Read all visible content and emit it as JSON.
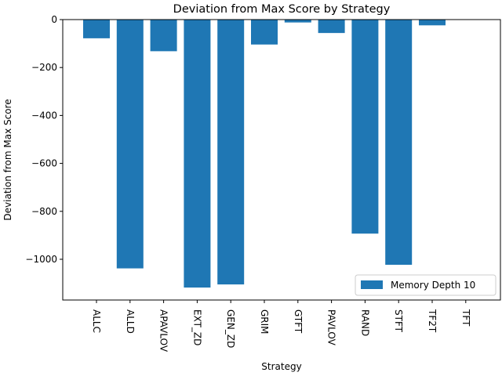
{
  "chart_data": {
    "type": "bar",
    "title": "Deviation from Max Score by Strategy",
    "xlabel": "Strategy",
    "ylabel": "Deviation from Max Score",
    "categories": [
      "ALLC",
      "ALLD",
      "APAVLOV",
      "EXT_ZD",
      "GEN_ZD",
      "GRIM",
      "GTFT",
      "PAVLOV",
      "RAND",
      "STFT",
      "TF2T",
      "TFT"
    ],
    "series": [
      {
        "name": "Memory Depth 10",
        "values": [
          -78,
          -1038,
          -132,
          -1118,
          -1105,
          -104,
          -12,
          -56,
          -893,
          -1023,
          -24,
          0
        ],
        "color": "#1f77b4"
      }
    ],
    "ylim": [
      -1170,
      0
    ],
    "yticks": [
      0,
      -200,
      -400,
      -600,
      -800,
      -1000
    ],
    "ytick_labels": [
      "0",
      "−200",
      "−400",
      "−600",
      "−800",
      "−1000"
    ],
    "grid": false,
    "legend_position": "lower-right"
  }
}
